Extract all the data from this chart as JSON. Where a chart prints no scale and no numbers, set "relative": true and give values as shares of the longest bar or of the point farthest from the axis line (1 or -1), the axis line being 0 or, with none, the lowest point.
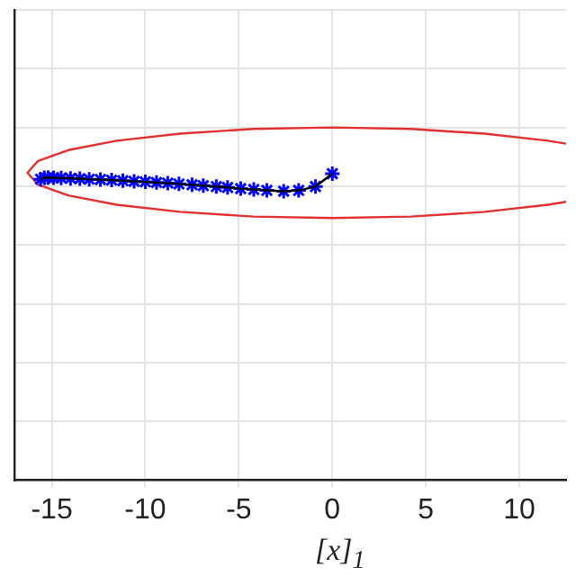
{
  "chart_data": {
    "type": "line",
    "xlabel": "[x]$_{1}$",
    "relative": true,
    "grid": true,
    "xlim": [
      -17,
      12.5
    ],
    "xticks": [
      -15,
      -10,
      -5,
      0,
      5,
      10
    ],
    "series": [
      {
        "marker": "none",
        "color": "#000000",
        "x": [
          0,
          -0.9,
          -1.8,
          -2.6,
          -3.5,
          -4.2,
          -4.9,
          -5.6,
          -6.2,
          -6.9,
          -7.5,
          -8.2,
          -8.8,
          -9.4,
          -10,
          -10.6,
          -11.2,
          -11.8,
          -12.4,
          -13,
          -13.5,
          -14,
          -14.5,
          -14.9,
          -15.2,
          -15.4,
          -15.6
        ],
        "values": [
          0.843,
          0.799,
          0.786,
          0.783,
          0.786,
          0.789,
          0.792,
          0.796,
          0.799,
          0.802,
          0.805,
          0.808,
          0.811,
          0.813,
          0.815,
          0.817,
          0.819,
          0.821,
          0.823,
          0.824,
          0.826,
          0.827,
          0.828,
          0.829,
          0.83,
          0.829,
          0.824
        ]
      },
      {
        "type": "scatter",
        "marker": "cross",
        "color": "#0000ff",
        "x": [
          0,
          -0.9,
          -1.8,
          -2.6,
          -3.5,
          -4.2,
          -4.9,
          -5.6,
          -6.2,
          -6.9,
          -7.5,
          -8.2,
          -8.8,
          -9.4,
          -10,
          -10.6,
          -11.2,
          -11.8,
          -12.4,
          -13,
          -13.5,
          -14,
          -14.5,
          -14.9,
          -15.2,
          -15.4,
          -15.6
        ],
        "values": [
          0.843,
          0.799,
          0.786,
          0.783,
          0.786,
          0.789,
          0.792,
          0.796,
          0.799,
          0.802,
          0.805,
          0.808,
          0.811,
          0.813,
          0.815,
          0.817,
          0.819,
          0.821,
          0.823,
          0.824,
          0.826,
          0.827,
          0.828,
          0.829,
          0.83,
          0.829,
          0.824
        ]
      },
      {
        "marker": "none",
        "color": "#e03030",
        "x": [
          12.5,
          11.53,
          8.15,
          4.22,
          0,
          -4.22,
          -8.15,
          -11.53,
          -14.12,
          -15.74,
          -16.3,
          -15.74,
          -14.12,
          -11.53,
          -8.15,
          -4.22,
          0,
          4.22,
          8.15,
          11.53,
          12.5
        ],
        "values": [
          0.945,
          0.955,
          0.979,
          0.995,
          1,
          0.995,
          0.979,
          0.955,
          0.923,
          0.886,
          0.846,
          0.806,
          0.769,
          0.737,
          0.713,
          0.697,
          0.692,
          0.697,
          0.713,
          0.737,
          0.747
        ]
      }
    ]
  }
}
